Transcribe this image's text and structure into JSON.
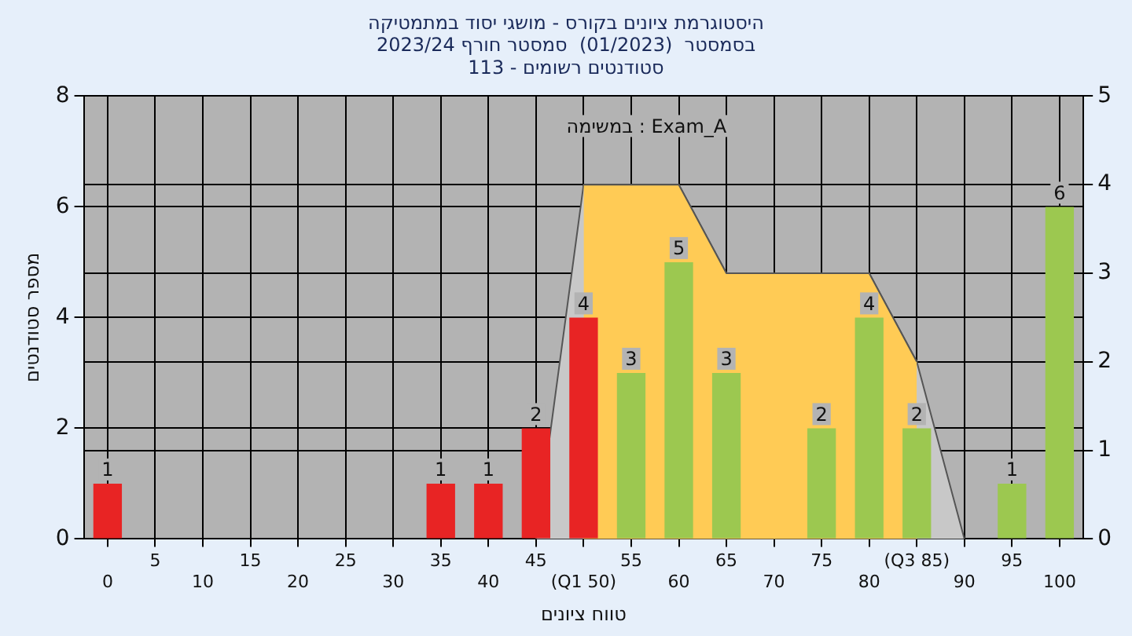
{
  "chart_data": {
    "type": "bar",
    "title": "היסטוגרמת ציונים בקורס - מושגי יסוד במתמטיקה",
    "subtitle": "בסמסטר  (01/2023)  סמסטר חורף 2023/24\nסטודנטים רשומים - 113",
    "xlabel": "טווח ציונים",
    "ylabel": "מספר סטודנטים",
    "annotations": [
      "במשימה : Exam_A"
    ],
    "categories": [
      "0",
      "5",
      "10",
      "15",
      "20",
      "25",
      "30",
      "35",
      "40",
      "45",
      "(Q1 50)",
      "55",
      "60",
      "65",
      "70",
      "75",
      "80",
      "(Q3 85)",
      "90",
      "95",
      "100"
    ],
    "series": [
      {
        "values": [
          1,
          0,
          0,
          0,
          0,
          0,
          0,
          1,
          1,
          2,
          4,
          3,
          5,
          3,
          0,
          2,
          4,
          2,
          0,
          1,
          6
        ],
        "value_labels": [
          "1",
          null,
          null,
          null,
          null,
          null,
          null,
          "1",
          "1",
          "2",
          "4",
          "3",
          "5",
          "3",
          null,
          "2",
          "4",
          "2",
          null,
          "1",
          "6"
        ],
        "colors": [
          "#e82424",
          "#e82424",
          "#e82424",
          "#e82424",
          "#e82424",
          "#e82424",
          "#e82424",
          "#e82424",
          "#e82424",
          "#e82424",
          "#e82424",
          "#9cc850",
          "#9cc850",
          "#9cc850",
          "#9cc850",
          "#9cc850",
          "#9cc850",
          "#9cc850",
          "#9cc850",
          "#9cc850",
          "#9cc850"
        ]
      },
      {
        "type": "area",
        "axis": "y2",
        "color": "#ffcb55",
        "values": [
          null,
          null,
          null,
          null,
          null,
          null,
          null,
          null,
          null,
          null,
          4,
          4,
          4,
          3,
          3,
          3,
          3,
          2,
          null,
          null,
          null
        ]
      },
      {
        "type": "area",
        "axis": "y2",
        "color": "#c8c8c8",
        "values": [
          null,
          null,
          null,
          null,
          null,
          null,
          null,
          null,
          null,
          0,
          4,
          4,
          4,
          3,
          3,
          3,
          3,
          2,
          0,
          null,
          null
        ]
      }
    ],
    "ylim": [
      0,
      8
    ],
    "yticks": [
      0,
      2,
      4,
      6,
      8
    ],
    "y2lim": [
      0,
      5
    ],
    "y2ticks": [
      0,
      1,
      2,
      3,
      4,
      5
    ],
    "grid": true,
    "legend": false
  }
}
